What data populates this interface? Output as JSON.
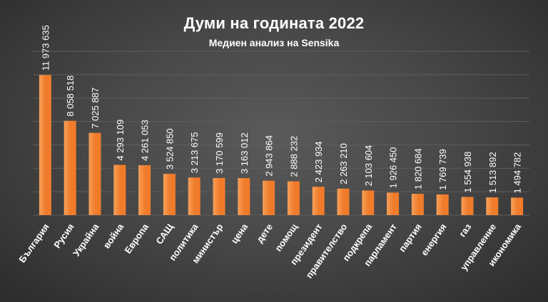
{
  "colors": {
    "bar": "#f07b2a",
    "bar_light": "#f7a05a",
    "grid": "#5e5e5e",
    "text": "#ffffff"
  },
  "chart_data": {
    "type": "bar",
    "title": "Думи на годината 2022",
    "subtitle": "Медиен анализ на Sensika",
    "xlabel": "",
    "ylabel": "",
    "ylim": [
      0,
      14000000
    ],
    "grid": true,
    "categories": [
      "България",
      "Русия",
      "Украйна",
      "война",
      "Европа",
      "САЩ",
      "политика",
      "министър",
      "цена",
      "дете",
      "помощ",
      "президент",
      "правителство",
      "подкрепа",
      "парламент",
      "партия",
      "енергия",
      "газ",
      "управление",
      "икономика"
    ],
    "values": [
      11973635,
      8058518,
      7025887,
      4293109,
      4261053,
      3524850,
      3213675,
      3170599,
      3163012,
      2943864,
      2888232,
      2423934,
      2263210,
      2103604,
      1926450,
      1820684,
      1769739,
      1554938,
      1513892,
      1494782
    ],
    "value_labels": [
      "11 973 635",
      "8 058 518",
      "7 025 887",
      "4 293 109",
      "4 261 053",
      "3 524 850",
      "3 213 675",
      "3 170 599",
      "3 163 012",
      "2 943 864",
      "2 888 232",
      "2 423 934",
      "2 263 210",
      "2 103 604",
      "1 926 450",
      "1 820 684",
      "1 769 739",
      "1 554 938",
      "1 513 892",
      "1 494 782"
    ]
  }
}
